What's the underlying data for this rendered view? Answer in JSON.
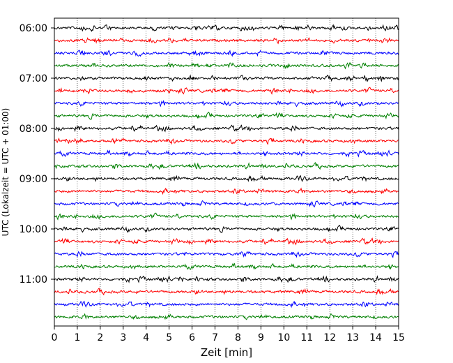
{
  "chart_data": {
    "type": "line",
    "xlabel": "Zeit  [min]",
    "ylabel": "UTC (Lokalzeit = UTC + 01:00)",
    "xlim": [
      0,
      15
    ],
    "x_ticks": [
      0,
      1,
      2,
      3,
      4,
      5,
      6,
      7,
      8,
      9,
      10,
      11,
      12,
      13,
      14,
      15
    ],
    "y_tick_labels": [
      "06:00",
      "07:00",
      "08:00",
      "09:00",
      "10:00",
      "11:00"
    ],
    "y_tick_trace_index": [
      0,
      4,
      8,
      12,
      16,
      20
    ],
    "grid_x": true,
    "trace_interval_minutes": 15,
    "trace_colors": [
      "#000000",
      "#ff0000",
      "#0000ff",
      "#008000"
    ],
    "traces": [
      {
        "start": "06:00"
      },
      {
        "start": "06:15"
      },
      {
        "start": "06:30"
      },
      {
        "start": "06:45"
      },
      {
        "start": "07:00"
      },
      {
        "start": "07:15"
      },
      {
        "start": "07:30"
      },
      {
        "start": "07:45"
      },
      {
        "start": "08:00"
      },
      {
        "start": "08:15"
      },
      {
        "start": "08:30"
      },
      {
        "start": "08:45"
      },
      {
        "start": "09:00"
      },
      {
        "start": "09:15"
      },
      {
        "start": "09:30"
      },
      {
        "start": "09:45"
      },
      {
        "start": "10:00"
      },
      {
        "start": "10:15"
      },
      {
        "start": "10:30"
      },
      {
        "start": "10:45"
      },
      {
        "start": "11:00"
      },
      {
        "start": "11:15"
      },
      {
        "start": "11:30"
      },
      {
        "start": "11:45"
      }
    ]
  }
}
